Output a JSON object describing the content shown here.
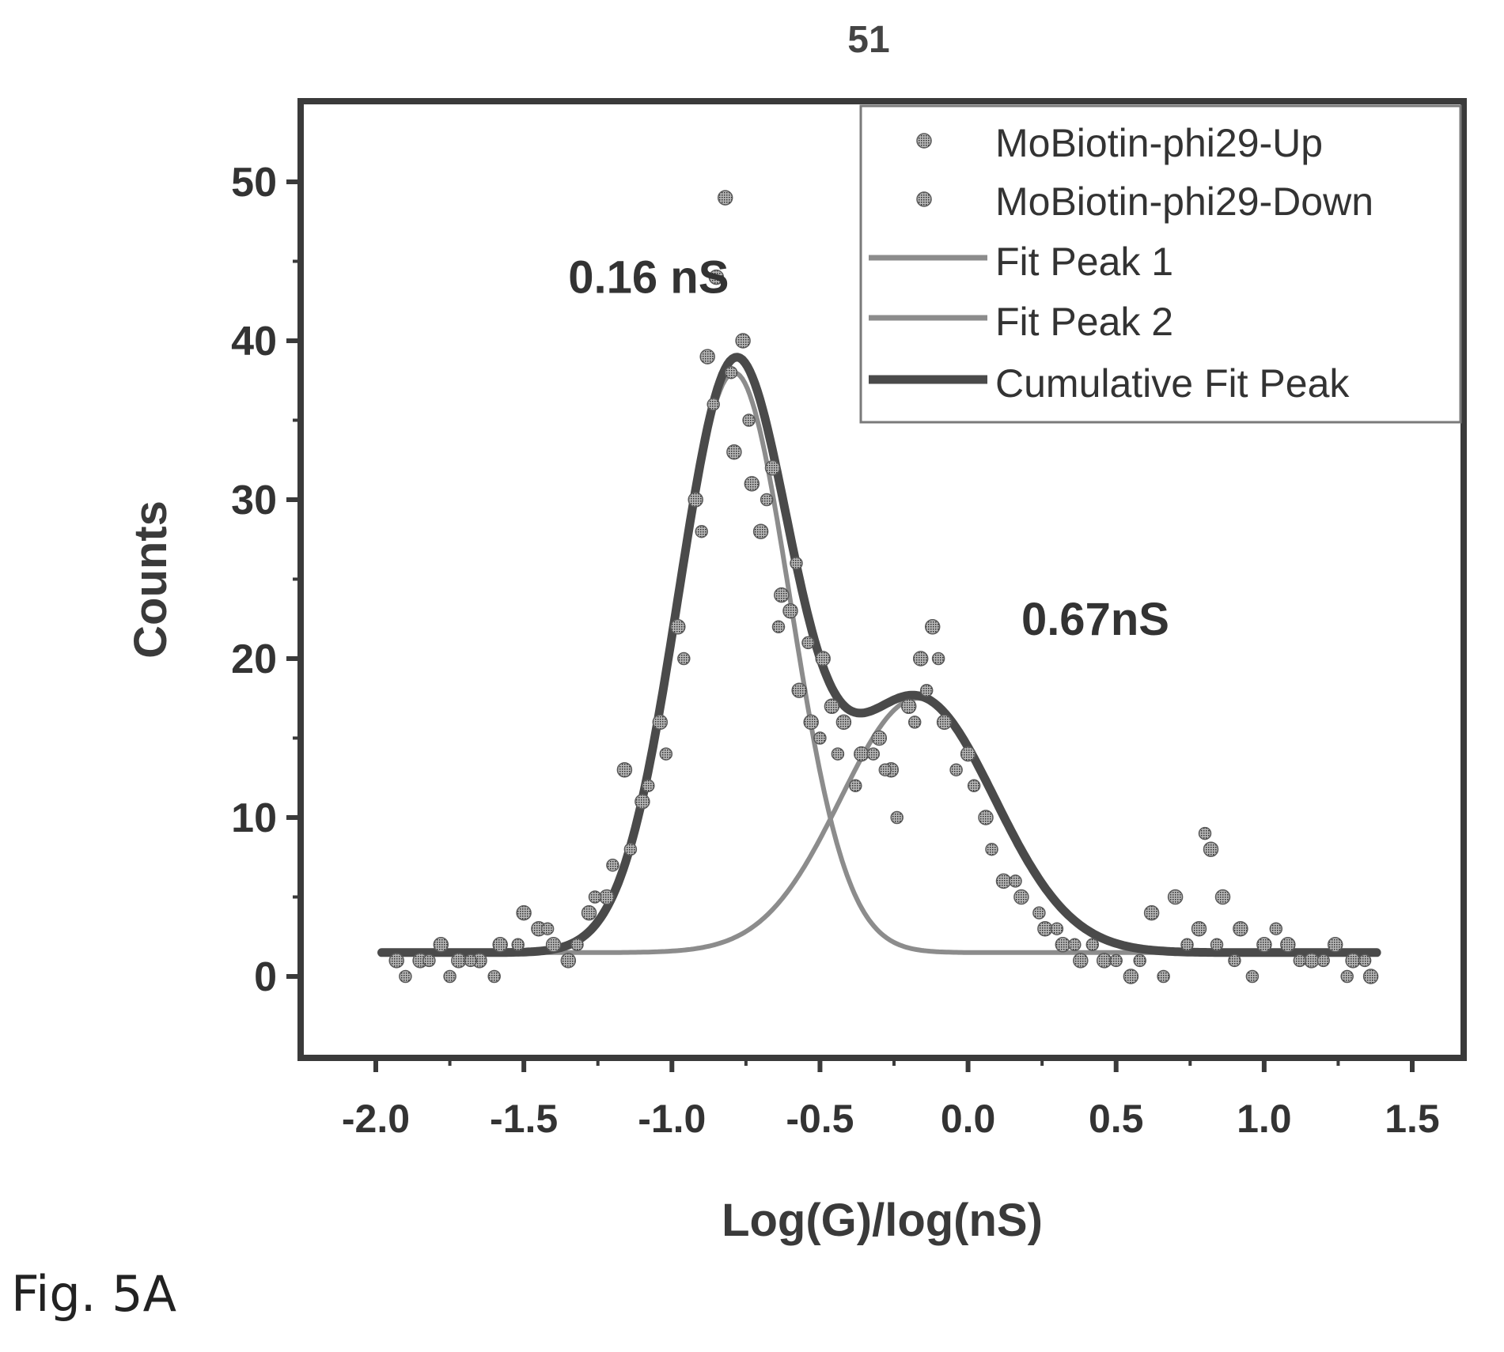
{
  "figure": {
    "number_label": "51",
    "caption": "Fig. 5A"
  },
  "chart_data": {
    "type": "scatter",
    "title": "",
    "xlabel": "Log(G)/log(nS)",
    "ylabel": "Counts",
    "xlim": [
      -2.5,
      1.75
    ],
    "ylim": [
      -5,
      55
    ],
    "xticks": [
      -2.0,
      -1.5,
      -1.0,
      -0.5,
      0.0,
      0.5,
      1.0,
      1.5
    ],
    "xtick_labels": [
      "-2.0",
      "-1.5",
      "-1.0",
      "-0.5",
      "0.0",
      "0.5",
      "1.0",
      "1.5"
    ],
    "yticks": [
      0,
      10,
      20,
      30,
      40,
      50
    ],
    "ytick_labels": [
      "0",
      "10",
      "20",
      "30",
      "40",
      "50"
    ],
    "grid": false,
    "legend_position": "top-right",
    "legend": [
      {
        "label": "MoBiotin-phi29-Up",
        "kind": "marker"
      },
      {
        "label": "MoBiotin-phi29-Down",
        "kind": "marker"
      },
      {
        "label": "Fit Peak 1",
        "kind": "line"
      },
      {
        "label": "Fit Peak 2",
        "kind": "line"
      },
      {
        "label": "Cumulative Fit Peak",
        "kind": "line"
      }
    ],
    "annotations": [
      {
        "text": "0.16 nS",
        "x": -1.35,
        "y": 43
      },
      {
        "text": "0.67nS",
        "x": 0.18,
        "y": 21.5
      }
    ],
    "scatter_series": [
      {
        "name": "MoBiotin-phi29-Up",
        "points": [
          [
            -1.93,
            1
          ],
          [
            -1.85,
            1
          ],
          [
            -1.78,
            2
          ],
          [
            -1.72,
            1
          ],
          [
            -1.65,
            1
          ],
          [
            -1.58,
            2
          ],
          [
            -1.5,
            4
          ],
          [
            -1.45,
            3
          ],
          [
            -1.4,
            2
          ],
          [
            -1.35,
            1
          ],
          [
            -1.28,
            4
          ],
          [
            -1.22,
            5
          ],
          [
            -1.16,
            13
          ],
          [
            -1.1,
            11
          ],
          [
            -1.04,
            16
          ],
          [
            -0.98,
            22
          ],
          [
            -0.92,
            30
          ],
          [
            -0.88,
            39
          ],
          [
            -0.85,
            44
          ],
          [
            -0.82,
            49
          ],
          [
            -0.79,
            33
          ],
          [
            -0.76,
            40
          ],
          [
            -0.73,
            31
          ],
          [
            -0.7,
            28
          ],
          [
            -0.66,
            32
          ],
          [
            -0.63,
            24
          ],
          [
            -0.6,
            23
          ],
          [
            -0.57,
            18
          ],
          [
            -0.53,
            16
          ],
          [
            -0.49,
            20
          ],
          [
            -0.46,
            17
          ],
          [
            -0.42,
            16
          ],
          [
            -0.36,
            14
          ],
          [
            -0.3,
            15
          ],
          [
            -0.26,
            13
          ],
          [
            -0.2,
            17
          ],
          [
            -0.16,
            20
          ],
          [
            -0.12,
            22
          ],
          [
            -0.08,
            16
          ],
          [
            0.0,
            14
          ],
          [
            0.06,
            10
          ],
          [
            0.12,
            6
          ],
          [
            0.18,
            5
          ],
          [
            0.26,
            3
          ],
          [
            0.32,
            2
          ],
          [
            0.38,
            1
          ],
          [
            0.46,
            1
          ],
          [
            0.55,
            0
          ],
          [
            0.62,
            4
          ],
          [
            0.7,
            5
          ],
          [
            0.78,
            3
          ],
          [
            0.82,
            8
          ],
          [
            0.86,
            5
          ],
          [
            0.92,
            3
          ],
          [
            1.0,
            2
          ],
          [
            1.08,
            2
          ],
          [
            1.16,
            1
          ],
          [
            1.24,
            2
          ],
          [
            1.3,
            1
          ],
          [
            1.36,
            0
          ]
        ]
      },
      {
        "name": "MoBiotin-phi29-Down",
        "points": [
          [
            -1.9,
            0
          ],
          [
            -1.82,
            1
          ],
          [
            -1.75,
            0
          ],
          [
            -1.68,
            1
          ],
          [
            -1.6,
            0
          ],
          [
            -1.52,
            2
          ],
          [
            -1.42,
            3
          ],
          [
            -1.32,
            2
          ],
          [
            -1.26,
            5
          ],
          [
            -1.2,
            7
          ],
          [
            -1.14,
            8
          ],
          [
            -1.08,
            12
          ],
          [
            -1.02,
            14
          ],
          [
            -0.96,
            20
          ],
          [
            -0.9,
            28
          ],
          [
            -0.86,
            36
          ],
          [
            -0.8,
            38
          ],
          [
            -0.74,
            35
          ],
          [
            -0.68,
            30
          ],
          [
            -0.64,
            22
          ],
          [
            -0.58,
            26
          ],
          [
            -0.54,
            21
          ],
          [
            -0.5,
            15
          ],
          [
            -0.44,
            14
          ],
          [
            -0.38,
            12
          ],
          [
            -0.32,
            14
          ],
          [
            -0.28,
            13
          ],
          [
            -0.24,
            10
          ],
          [
            -0.18,
            16
          ],
          [
            -0.14,
            18
          ],
          [
            -0.1,
            20
          ],
          [
            -0.04,
            13
          ],
          [
            0.02,
            12
          ],
          [
            0.08,
            8
          ],
          [
            0.16,
            6
          ],
          [
            0.24,
            4
          ],
          [
            0.3,
            3
          ],
          [
            0.36,
            2
          ],
          [
            0.42,
            2
          ],
          [
            0.5,
            1
          ],
          [
            0.58,
            1
          ],
          [
            0.66,
            0
          ],
          [
            0.74,
            2
          ],
          [
            0.8,
            9
          ],
          [
            0.84,
            2
          ],
          [
            0.9,
            1
          ],
          [
            0.96,
            0
          ],
          [
            1.04,
            3
          ],
          [
            1.12,
            1
          ],
          [
            1.2,
            1
          ],
          [
            1.28,
            0
          ],
          [
            1.34,
            1
          ]
        ]
      }
    ],
    "fit_series": [
      {
        "name": "Fit Peak 1",
        "baseline": 1.5,
        "amplitude": 36.5,
        "center": -0.79,
        "width": 0.19
      },
      {
        "name": "Fit Peak 2",
        "baseline": 1.5,
        "amplitude": 16,
        "center": -0.17,
        "width": 0.26
      },
      {
        "name": "Cumulative Fit Peak",
        "components": [
          "Fit Peak 1",
          "Fit Peak 2"
        ]
      }
    ],
    "colors": {
      "frame": "#3a3a3a",
      "marker": "#5a5a5a",
      "fit_peak_1": "#8c8c8c",
      "fit_peak_2": "#8c8c8c",
      "cumulative": "#4a4a4a",
      "text": "#333333"
    }
  }
}
